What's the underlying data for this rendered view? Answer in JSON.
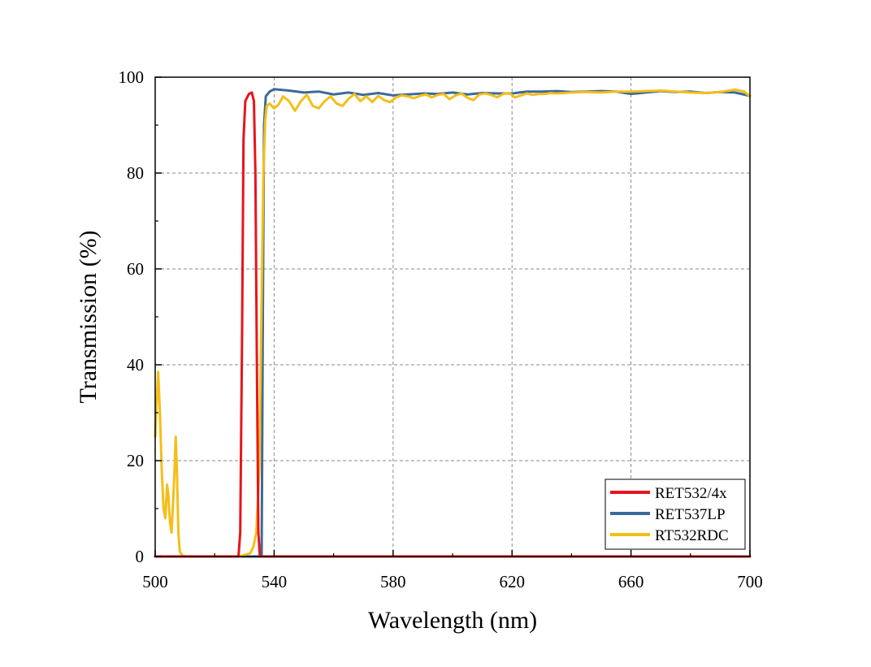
{
  "chart_data": {
    "type": "line",
    "xlabel": "Wavelength (nm)",
    "ylabel": "Transmission (%)",
    "xlim": [
      500,
      700
    ],
    "ylim": [
      0,
      100
    ],
    "x_ticks": [
      "500",
      "540",
      "580",
      "620",
      "660",
      "700"
    ],
    "y_ticks": [
      "0",
      "20",
      "40",
      "60",
      "80",
      "100"
    ],
    "grid": true,
    "legend_position": "bottom-right",
    "series": [
      {
        "name": "RET532/4x",
        "color": "#e8141c",
        "points": [
          [
            500,
            0
          ],
          [
            528,
            0
          ],
          [
            528.6,
            5
          ],
          [
            529.2,
            45
          ],
          [
            529.7,
            87
          ],
          [
            530.3,
            95
          ],
          [
            531.5,
            96.5
          ],
          [
            532.5,
            96.8
          ],
          [
            533.2,
            95
          ],
          [
            533.7,
            80
          ],
          [
            534.2,
            40
          ],
          [
            534.7,
            5
          ],
          [
            535.2,
            0
          ],
          [
            700,
            0
          ]
        ]
      },
      {
        "name": "RET537LP",
        "color": "#3a6a9a",
        "points": [
          [
            500,
            0
          ],
          [
            535.8,
            0
          ],
          [
            536.2,
            50
          ],
          [
            536.6,
            90
          ],
          [
            537.2,
            96
          ],
          [
            538.5,
            97
          ],
          [
            540,
            97.5
          ],
          [
            545,
            97.2
          ],
          [
            550,
            96.8
          ],
          [
            555,
            97
          ],
          [
            560,
            96.4
          ],
          [
            565,
            96.8
          ],
          [
            570,
            96.3
          ],
          [
            575,
            96.7
          ],
          [
            580,
            96.2
          ],
          [
            585,
            96.4
          ],
          [
            590,
            96.6
          ],
          [
            595,
            96.5
          ],
          [
            600,
            96.8
          ],
          [
            605,
            96.4
          ],
          [
            610,
            96.7
          ],
          [
            615,
            96.6
          ],
          [
            620,
            96.6
          ],
          [
            625,
            97
          ],
          [
            630,
            97
          ],
          [
            635,
            97.1
          ],
          [
            640,
            96.9
          ],
          [
            645,
            97
          ],
          [
            650,
            97.1
          ],
          [
            655,
            97
          ],
          [
            660,
            96.5
          ],
          [
            665,
            96.8
          ],
          [
            670,
            97.1
          ],
          [
            675,
            96.9
          ],
          [
            680,
            97
          ],
          [
            685,
            96.7
          ],
          [
            690,
            96.9
          ],
          [
            695,
            96.8
          ],
          [
            700,
            96.1
          ]
        ]
      },
      {
        "name": "RT532RDC",
        "color": "#f5be18",
        "points": [
          [
            500,
            25
          ],
          [
            500.5,
            32
          ],
          [
            501,
            38.5
          ],
          [
            501.6,
            30
          ],
          [
            502.2,
            18
          ],
          [
            502.8,
            10
          ],
          [
            503.4,
            8
          ],
          [
            504,
            15
          ],
          [
            504.4,
            13
          ],
          [
            505,
            7
          ],
          [
            505.5,
            5
          ],
          [
            506,
            11
          ],
          [
            506.5,
            18
          ],
          [
            506.9,
            25
          ],
          [
            507.3,
            18
          ],
          [
            507.8,
            5
          ],
          [
            508.3,
            1
          ],
          [
            509,
            0.3
          ],
          [
            510,
            0
          ],
          [
            528,
            0
          ],
          [
            530,
            0.3
          ],
          [
            532,
            0.7
          ],
          [
            533,
            2
          ],
          [
            534,
            5
          ],
          [
            535,
            18
          ],
          [
            535.7,
            50
          ],
          [
            536.4,
            80
          ],
          [
            537,
            91
          ],
          [
            537.5,
            94
          ],
          [
            538.5,
            94.5
          ],
          [
            540,
            93.5
          ],
          [
            541.5,
            94.3
          ],
          [
            543,
            96
          ],
          [
            545,
            95
          ],
          [
            547,
            93
          ],
          [
            549,
            95
          ],
          [
            551,
            96.3
          ],
          [
            553,
            94
          ],
          [
            555,
            93.5
          ],
          [
            557,
            95
          ],
          [
            559,
            96
          ],
          [
            561,
            94.5
          ],
          [
            563,
            94
          ],
          [
            565,
            95.5
          ],
          [
            567,
            96.5
          ],
          [
            569,
            95
          ],
          [
            571,
            96
          ],
          [
            573,
            94.8
          ],
          [
            575,
            96.1
          ],
          [
            577,
            95.2
          ],
          [
            579,
            94.8
          ],
          [
            581,
            95.8
          ],
          [
            583,
            96.2
          ],
          [
            585,
            96
          ],
          [
            587,
            95.6
          ],
          [
            589,
            96.1
          ],
          [
            591,
            96.4
          ],
          [
            593,
            95.8
          ],
          [
            595,
            96.3
          ],
          [
            597,
            96.5
          ],
          [
            599,
            95.4
          ],
          [
            601,
            96.2
          ],
          [
            603,
            96.6
          ],
          [
            605,
            95.7
          ],
          [
            607,
            95.2
          ],
          [
            609,
            96.4
          ],
          [
            611,
            96.6
          ],
          [
            613,
            96.3
          ],
          [
            615,
            95.8
          ],
          [
            617,
            96.5
          ],
          [
            619,
            96.7
          ],
          [
            621,
            95.8
          ],
          [
            623,
            96.2
          ],
          [
            625,
            96.6
          ],
          [
            627,
            96.3
          ],
          [
            629,
            96.5
          ],
          [
            631,
            96.5
          ],
          [
            633,
            96.7
          ],
          [
            635,
            96.6
          ],
          [
            640,
            96.8
          ],
          [
            645,
            96.9
          ],
          [
            650,
            96.8
          ],
          [
            655,
            97
          ],
          [
            660,
            97
          ],
          [
            665,
            97.1
          ],
          [
            670,
            97.2
          ],
          [
            675,
            97
          ],
          [
            680,
            96.8
          ],
          [
            685,
            96.7
          ],
          [
            690,
            96.9
          ],
          [
            695,
            97.4
          ],
          [
            698,
            97
          ],
          [
            700,
            96
          ]
        ]
      }
    ]
  }
}
